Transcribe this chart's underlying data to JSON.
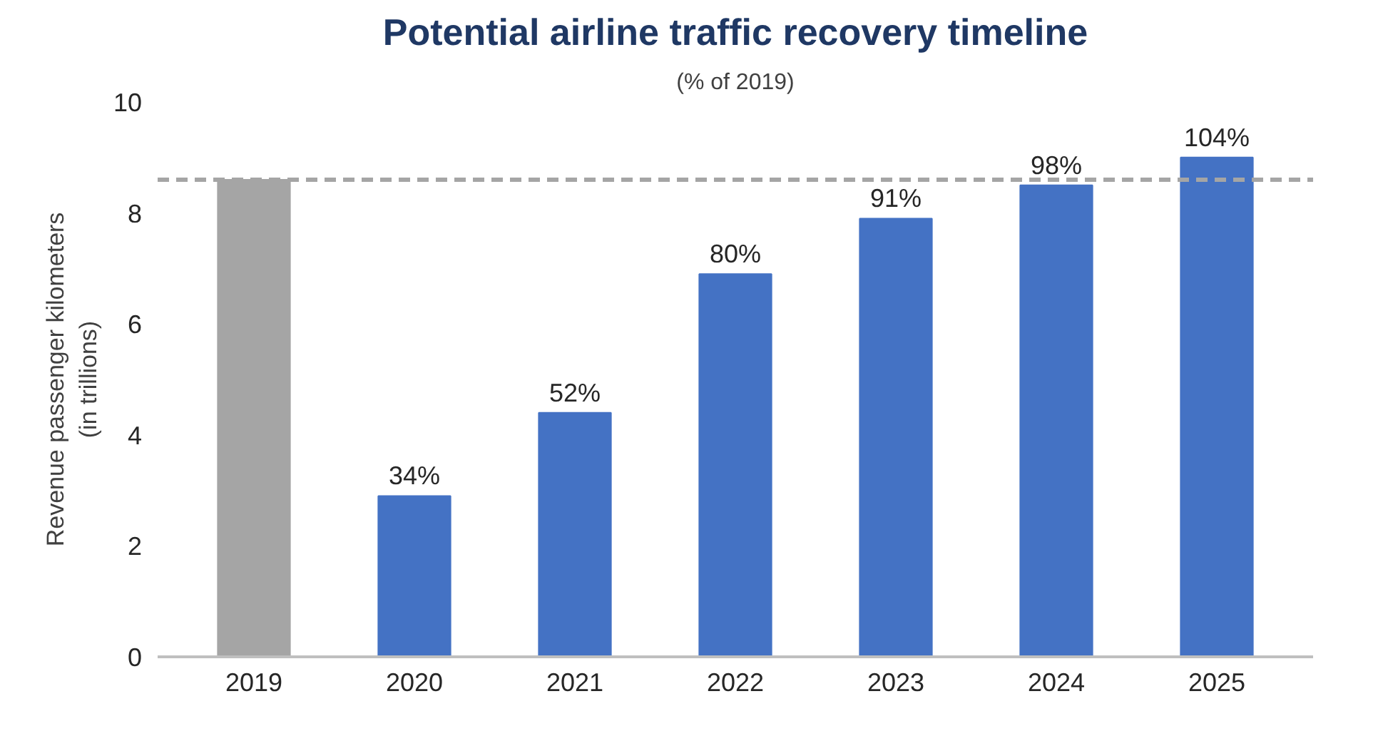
{
  "chart_data": {
    "type": "bar",
    "title": "Potential airline traffic recovery timeline",
    "subtitle": "(% of 2019)",
    "ylabel": "Revenue passenger kilometers\n(in trillions)",
    "categories": [
      "2019",
      "2020",
      "2021",
      "2022",
      "2023",
      "2024",
      "2025"
    ],
    "values": [
      8.6,
      2.9,
      4.4,
      6.9,
      7.9,
      8.5,
      9.0
    ],
    "colors": [
      "#a5a5a5",
      "#4472c4",
      "#4472c4",
      "#4472c4",
      "#4472c4",
      "#4472c4",
      "#4472c4"
    ],
    "annotations": [
      {
        "text": "34%",
        "x": "2020",
        "y": 2.9
      },
      {
        "text": "52%",
        "x": "2021",
        "y": 4.4
      },
      {
        "text": "80%",
        "x": "2022",
        "y": 6.9
      },
      {
        "text": "91%",
        "x": "2023",
        "y": 7.9
      },
      {
        "text": "98%",
        "x": "2024",
        "y": 8.5
      },
      {
        "text": "104%",
        "x": "2025",
        "y": 9.0
      }
    ],
    "ylim": [
      0,
      10
    ],
    "yticks": [
      0,
      2,
      4,
      6,
      8,
      10
    ],
    "grid": false,
    "ref_lines": [
      {
        "axis": "y",
        "value": 8.6,
        "label": null,
        "color": "#a5a5a5",
        "line_style": "dashed"
      }
    ]
  }
}
